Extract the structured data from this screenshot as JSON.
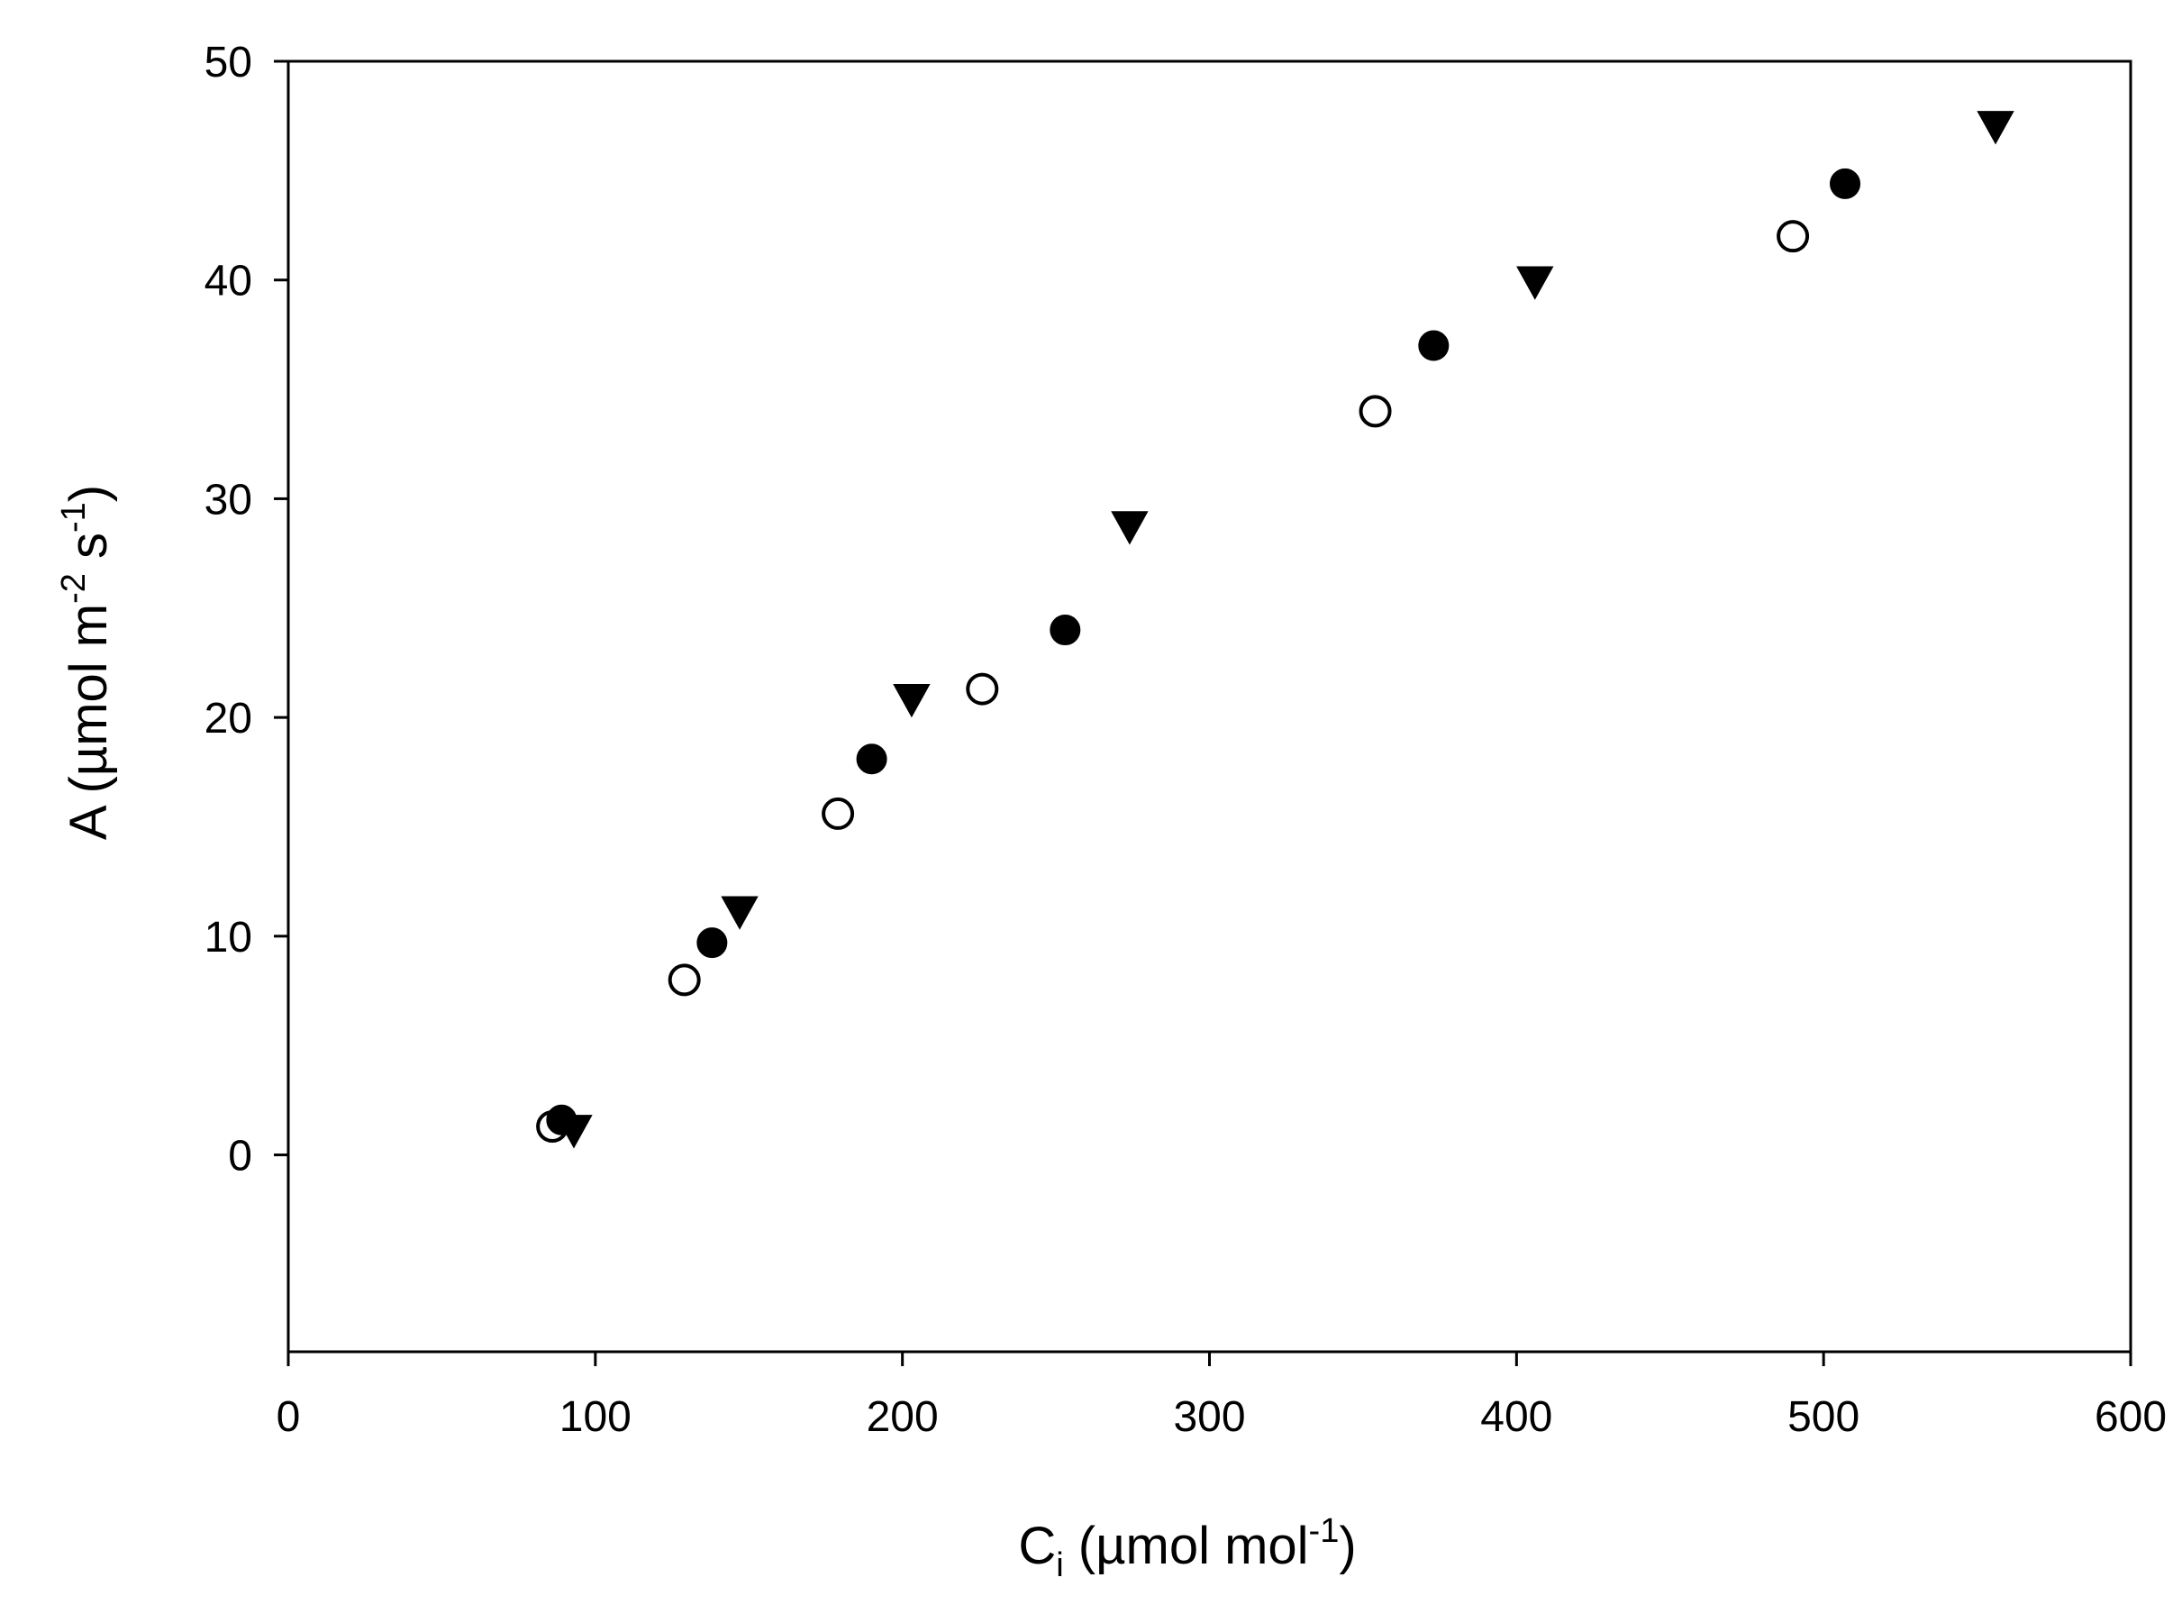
{
  "chart_data": {
    "type": "scatter",
    "title": "",
    "xlabel": {
      "main": "C",
      "sub": "i",
      "unit_open": " (µmol mol",
      "sup": "-1",
      "unit_close": ")"
    },
    "ylabel": {
      "main": "A (µmol m",
      "sup1": "-2",
      "mid": " s",
      "sup2": "-1",
      "close": ")"
    },
    "xlim": [
      0,
      600
    ],
    "ylim": [
      -9,
      50
    ],
    "xticks": [
      0,
      100,
      200,
      300,
      400,
      500,
      600
    ],
    "yticks": [
      0,
      10,
      20,
      30,
      40,
      50
    ],
    "grid": false,
    "series": [
      {
        "marker": "open-circle",
        "x": [
          86,
          129,
          179,
          226,
          354,
          490
        ],
        "y": [
          1.3,
          8.0,
          15.6,
          21.3,
          34.0,
          42.0
        ]
      },
      {
        "marker": "filled-circle",
        "x": [
          89,
          138,
          190,
          253,
          373,
          507
        ],
        "y": [
          1.6,
          9.7,
          18.1,
          24.0,
          37.0,
          44.4
        ]
      },
      {
        "marker": "filled-triangle-down",
        "x": [
          93,
          147,
          203,
          274,
          406,
          556
        ],
        "y": [
          1.2,
          11.2,
          20.9,
          28.8,
          40.0,
          47.1
        ]
      }
    ]
  }
}
